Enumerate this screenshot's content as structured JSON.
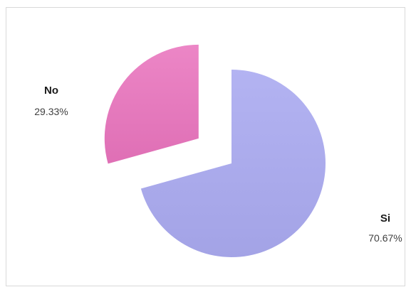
{
  "chart_data": {
    "type": "pie",
    "exploded": true,
    "start_angle_deg": 0,
    "direction": "clockwise",
    "legend": "none",
    "slices": [
      {
        "label": "Si",
        "value": 70.67,
        "value_text": "70.67%",
        "color": "#aaaaee"
      },
      {
        "label": "No",
        "value": 29.33,
        "value_text": "29.33%",
        "color": "#e879bf"
      }
    ]
  }
}
